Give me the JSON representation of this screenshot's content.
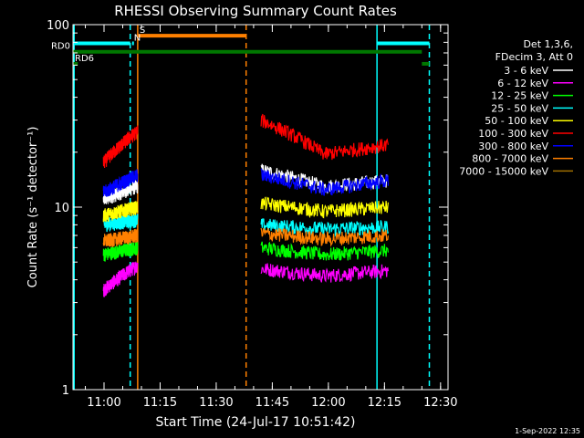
{
  "chart_data": {
    "type": "line",
    "title": "RHESSI Observing Summary Count Rates",
    "xlabel": "Start Time (24-Jul-17 10:51:42)",
    "ylabel": "Count Rate (s⁻¹ detector⁻¹)",
    "yscale": "log",
    "ylim": [
      1,
      100
    ],
    "xlim": [
      "10:51:42",
      "12:32:00"
    ],
    "x_ticks": [
      "11:00",
      "11:15",
      "11:30",
      "11:45",
      "12:00",
      "12:15",
      "12:30"
    ],
    "y_ticks": [
      "1",
      "10",
      "100"
    ],
    "legend": {
      "header": [
        "Det 1,3,6,",
        "FDecim 3, Att 0"
      ],
      "placement": "right"
    },
    "series": [
      {
        "name": "3 - 6 keV",
        "color": "#ffffff",
        "segments": [
          {
            "start": "10:59:50",
            "end": "11:09:00",
            "level": [
              11,
              13
            ]
          },
          {
            "start": "11:42:00",
            "end": "12:16:00",
            "level": [
              16,
              13,
              14
            ]
          }
        ]
      },
      {
        "name": "6 - 12 keV",
        "color": "#ff00ff",
        "segments": [
          {
            "start": "10:59:50",
            "end": "11:09:00",
            "level": [
              3.5,
              4.8
            ]
          },
          {
            "start": "11:42:00",
            "end": "12:16:00",
            "level": [
              4.6,
              4.2,
              4.5
            ]
          }
        ]
      },
      {
        "name": "12 - 25 keV",
        "color": "#00ff00",
        "segments": [
          {
            "start": "10:59:50",
            "end": "11:09:00",
            "level": [
              5.5,
              6
            ]
          },
          {
            "start": "11:42:00",
            "end": "12:16:00",
            "level": [
              6,
              5.5,
              5.8
            ]
          }
        ]
      },
      {
        "name": "25 - 50 keV",
        "color": "#00ffff",
        "segments": [
          {
            "start": "10:59:50",
            "end": "11:09:00",
            "level": [
              8,
              8.5
            ]
          },
          {
            "start": "11:42:00",
            "end": "12:16:00",
            "level": [
              8,
              7.6,
              7.8
            ]
          }
        ]
      },
      {
        "name": "50 - 100 keV",
        "color": "#ffff00",
        "segments": [
          {
            "start": "10:59:50",
            "end": "11:09:00",
            "level": [
              9,
              10
            ]
          },
          {
            "start": "11:42:00",
            "end": "12:16:00",
            "level": [
              10.5,
              9.5,
              10
            ]
          }
        ]
      },
      {
        "name": "100 - 300 keV",
        "color": "#ff0000",
        "segments": [
          {
            "start": "10:59:50",
            "end": "11:09:00",
            "level": [
              17.5,
              26
            ]
          },
          {
            "start": "11:42:00",
            "end": "12:16:00",
            "level": [
              30,
              19.5,
              22
            ]
          }
        ]
      },
      {
        "name": "300 - 800 keV",
        "color": "#0000ff",
        "segments": [
          {
            "start": "10:59:50",
            "end": "11:09:00",
            "level": [
              12,
              15
            ]
          },
          {
            "start": "11:42:00",
            "end": "12:16:00",
            "level": [
              15,
              12.5,
              14
            ]
          }
        ]
      },
      {
        "name": "800 - 7000 keV",
        "color": "#ff8000",
        "segments": [
          {
            "start": "10:59:50",
            "end": "11:09:00",
            "level": [
              6.5,
              7
            ]
          },
          {
            "start": "11:42:00",
            "end": "12:16:00",
            "level": [
              7.2,
              6.7,
              7
            ]
          }
        ]
      },
      {
        "name": "7000 - 15000 keV",
        "color": "#a07000",
        "segments": []
      }
    ],
    "markers": [
      {
        "kind": "solid",
        "time": "10:52:00",
        "color": "#00ffff"
      },
      {
        "kind": "dashed",
        "time": "11:07:00",
        "color": "#00ffff"
      },
      {
        "kind": "solid",
        "time": "11:09:00",
        "color": "#ff8000"
      },
      {
        "kind": "dashed",
        "time": "11:38:00",
        "color": "#ff8000"
      },
      {
        "kind": "solid",
        "time": "12:13:00",
        "color": "#00ffff"
      },
      {
        "kind": "dashed",
        "time": "12:27:00",
        "color": "#00ffff"
      }
    ],
    "bars": [
      {
        "label": "",
        "color": "#00ffff",
        "start": "10:51:42",
        "end": "11:07:00",
        "level": 79
      },
      {
        "label": "",
        "color": "#00ffff",
        "start": "12:13:00",
        "end": "12:27:00",
        "level": 79
      },
      {
        "label": "S",
        "color": "#ff8000",
        "start": "11:09:00",
        "end": "11:38:00",
        "level": 87
      },
      {
        "label": "N",
        "color": "#00ffff",
        "start": "11:07:30",
        "end": "11:07:30",
        "level": 79
      },
      {
        "label": "RD0",
        "color": "#007700",
        "start": "10:51:42",
        "end": "12:25:00",
        "level": 71
      },
      {
        "label": "RD6",
        "color": "#007700",
        "start": "10:51:42",
        "end": "10:53:00",
        "level": 61
      },
      {
        "label": "",
        "color": "#007700",
        "start": "12:25:00",
        "end": "12:27:00",
        "level": 61
      }
    ]
  },
  "timestamp": "1-Sep-2022 12:35"
}
